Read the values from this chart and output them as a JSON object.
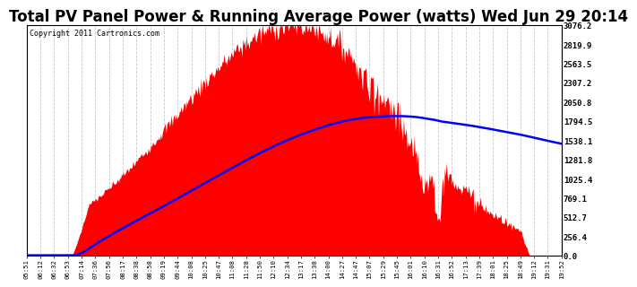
{
  "title": "Total PV Panel Power & Running Average Power (watts) Wed Jun 29 20:14",
  "copyright": "Copyright 2011 Cartronics.com",
  "y_tick_values": [
    0.0,
    256.4,
    512.7,
    769.1,
    1025.4,
    1281.8,
    1538.1,
    1794.5,
    2050.8,
    2307.2,
    2563.5,
    2819.9,
    3076.2
  ],
  "x_labels": [
    "05:51",
    "06:12",
    "06:32",
    "06:53",
    "07:14",
    "07:36",
    "07:56",
    "08:17",
    "08:38",
    "08:58",
    "09:19",
    "09:44",
    "10:08",
    "10:25",
    "10:47",
    "11:08",
    "11:28",
    "11:50",
    "12:10",
    "12:34",
    "13:17",
    "13:38",
    "14:00",
    "14:27",
    "14:47",
    "15:07",
    "15:29",
    "15:45",
    "16:01",
    "16:10",
    "16:31",
    "16:52",
    "17:13",
    "17:39",
    "18:01",
    "18:25",
    "18:49",
    "19:12",
    "19:31",
    "19:52"
  ],
  "background_color": "#ffffff",
  "plot_bg_color": "#ffffff",
  "grid_color": "#c8c8c8",
  "fill_color": "#ff0000",
  "line_color": "#0000ff",
  "title_fontsize": 12,
  "copyright_fontsize": 6,
  "ylim": [
    0,
    3076.2
  ],
  "peak_power": 3076.2,
  "n_points": 600
}
